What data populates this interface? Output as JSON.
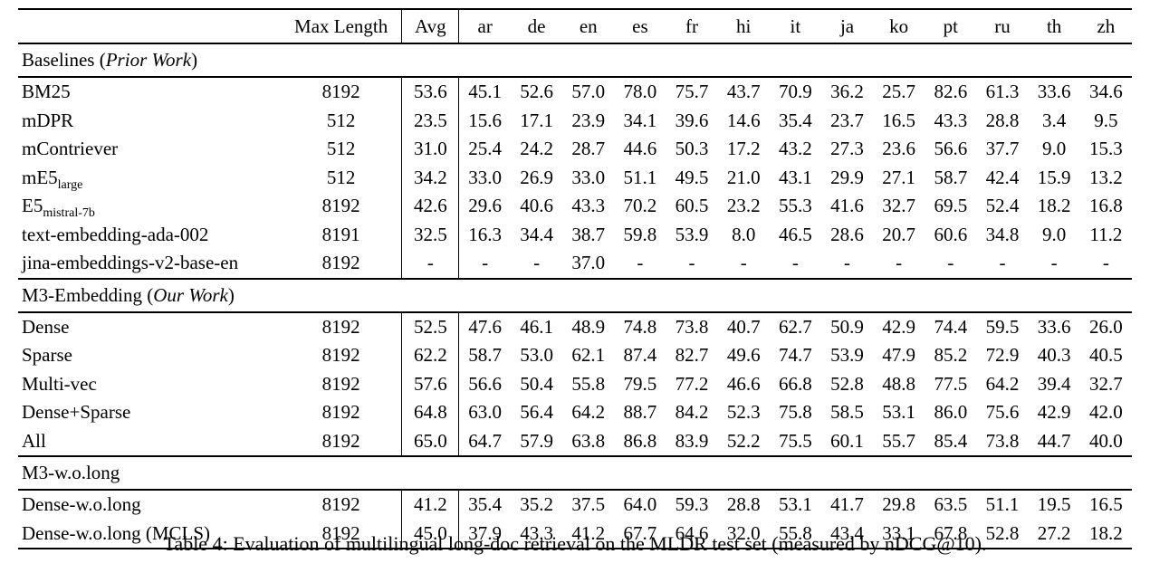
{
  "table": {
    "header": {
      "model_col": "",
      "max_length": "Max Length",
      "avg": "Avg",
      "languages": [
        "ar",
        "de",
        "en",
        "es",
        "fr",
        "hi",
        "it",
        "ja",
        "ko",
        "pt",
        "ru",
        "th",
        "zh"
      ]
    },
    "sections": [
      {
        "title": {
          "prefix": "Baselines (",
          "italic": "Prior Work",
          "suffix": ")"
        },
        "rows": [
          {
            "model": {
              "main": "BM25",
              "sub": ""
            },
            "max_length": "8192",
            "values": [
              "53.6",
              "45.1",
              "52.6",
              "57.0",
              "78.0",
              "75.7",
              "43.7",
              "70.9",
              "36.2",
              "25.7",
              "82.6",
              "61.3",
              "33.6",
              "34.6"
            ],
            "bold": []
          },
          {
            "model": {
              "main": "mDPR",
              "sub": ""
            },
            "max_length": "512",
            "values": [
              "23.5",
              "15.6",
              "17.1",
              "23.9",
              "34.1",
              "39.6",
              "14.6",
              "35.4",
              "23.7",
              "16.5",
              "43.3",
              "28.8",
              "3.4",
              "9.5"
            ],
            "bold": []
          },
          {
            "model": {
              "main": "mContriever",
              "sub": ""
            },
            "max_length": "512",
            "values": [
              "31.0",
              "25.4",
              "24.2",
              "28.7",
              "44.6",
              "50.3",
              "17.2",
              "43.2",
              "27.3",
              "23.6",
              "56.6",
              "37.7",
              "9.0",
              "15.3"
            ],
            "bold": []
          },
          {
            "model": {
              "main": "mE5",
              "sub": "large"
            },
            "max_length": "512",
            "values": [
              "34.2",
              "33.0",
              "26.9",
              "33.0",
              "51.1",
              "49.5",
              "21.0",
              "43.1",
              "29.9",
              "27.1",
              "58.7",
              "42.4",
              "15.9",
              "13.2"
            ],
            "bold": []
          },
          {
            "model": {
              "main": "E5",
              "sub": "mistral-7b"
            },
            "max_length": "8192",
            "values": [
              "42.6",
              "29.6",
              "40.6",
              "43.3",
              "70.2",
              "60.5",
              "23.2",
              "55.3",
              "41.6",
              "32.7",
              "69.5",
              "52.4",
              "18.2",
              "16.8"
            ],
            "bold": []
          },
          {
            "model": {
              "main": "text-embedding-ada-002",
              "sub": ""
            },
            "max_length": "8191",
            "values": [
              "32.5",
              "16.3",
              "34.4",
              "38.7",
              "59.8",
              "53.9",
              "8.0",
              "46.5",
              "28.6",
              "20.7",
              "60.6",
              "34.8",
              "9.0",
              "11.2"
            ],
            "bold": []
          },
          {
            "model": {
              "main": "jina-embeddings-v2-base-en",
              "sub": ""
            },
            "max_length": "8192",
            "values": [
              "-",
              "-",
              "-",
              "37.0",
              "-",
              "-",
              "-",
              "-",
              "-",
              "-",
              "-",
              "-",
              "-",
              "-"
            ],
            "bold": []
          }
        ]
      },
      {
        "title": {
          "prefix": "M3-Embedding (",
          "italic": "Our Work",
          "suffix": ")"
        },
        "rows": [
          {
            "model": {
              "main": "Dense",
              "sub": ""
            },
            "max_length": "8192",
            "values": [
              "52.5",
              "47.6",
              "46.1",
              "48.9",
              "74.8",
              "73.8",
              "40.7",
              "62.7",
              "50.9",
              "42.9",
              "74.4",
              "59.5",
              "33.6",
              "26.0"
            ],
            "bold": []
          },
          {
            "model": {
              "main": "Sparse",
              "sub": ""
            },
            "max_length": "8192",
            "values": [
              "62.2",
              "58.7",
              "53.0",
              "62.1",
              "87.4",
              "82.7",
              "49.6",
              "74.7",
              "53.9",
              "47.9",
              "85.2",
              "72.9",
              "40.3",
              "40.5"
            ],
            "bold": []
          },
          {
            "model": {
              "main": "Multi-vec",
              "sub": ""
            },
            "max_length": "8192",
            "values": [
              "57.6",
              "56.6",
              "50.4",
              "55.8",
              "79.5",
              "77.2",
              "46.6",
              "66.8",
              "52.8",
              "48.8",
              "77.5",
              "64.2",
              "39.4",
              "32.7"
            ],
            "bold": []
          },
          {
            "model": {
              "main": "Dense+Sparse",
              "sub": ""
            },
            "max_length": "8192",
            "values": [
              "64.8",
              "63.0",
              "56.4",
              "64.2",
              "88.7",
              "84.2",
              "52.3",
              "75.8",
              "58.5",
              "53.1",
              "86.0",
              "75.6",
              "42.9",
              "42.0"
            ],
            "bold": [
              3,
              4,
              5,
              6,
              7,
              10,
              11,
              13
            ]
          },
          {
            "model": {
              "main": "All",
              "sub": ""
            },
            "max_length": "8192",
            "values": [
              "65.0",
              "64.7",
              "57.9",
              "63.8",
              "86.8",
              "83.9",
              "52.2",
              "75.5",
              "60.1",
              "55.7",
              "85.4",
              "73.8",
              "44.7",
              "40.0"
            ],
            "bold": [
              0,
              1,
              2,
              8,
              9,
              12
            ]
          }
        ]
      },
      {
        "title": {
          "prefix": "M3-w.o.long",
          "italic": "",
          "suffix": ""
        },
        "rows": [
          {
            "model": {
              "main": "Dense-w.o.long",
              "sub": ""
            },
            "max_length": "8192",
            "values": [
              "41.2",
              "35.4",
              "35.2",
              "37.5",
              "64.0",
              "59.3",
              "28.8",
              "53.1",
              "41.7",
              "29.8",
              "63.5",
              "51.1",
              "19.5",
              "16.5"
            ],
            "bold": []
          },
          {
            "model": {
              "main": "Dense-w.o.long (MCLS)",
              "sub": ""
            },
            "max_length": "8192",
            "values": [
              "45.0",
              "37.9",
              "43.3",
              "41.2",
              "67.7",
              "64.6",
              "32.0",
              "55.8",
              "43.4",
              "33.1",
              "67.8",
              "52.8",
              "27.2",
              "18.2"
            ],
            "bold": []
          }
        ]
      }
    ]
  },
  "caption": "Table 4: Evaluation of multilingual long-doc retrieval on the MLDR test set (measured by nDCG@10)."
}
